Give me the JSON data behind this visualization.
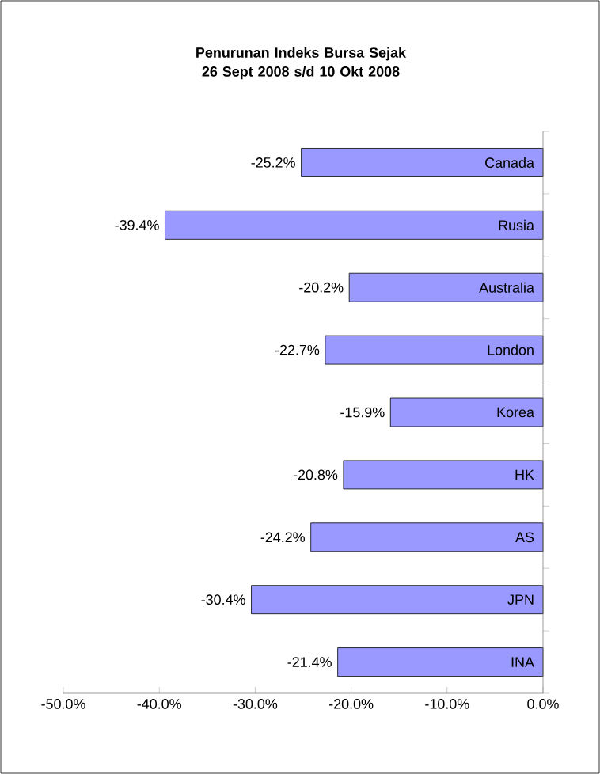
{
  "chart_data": {
    "type": "bar",
    "orientation": "horizontal",
    "title": "Penurunan Indeks Bursa Sejak 26 Sept 2008 s/d 10 Okt 2008",
    "categories": [
      "Canada",
      "Rusia",
      "Australia",
      "London",
      "Korea",
      "HK",
      "AS",
      "JPN",
      "INA"
    ],
    "values": [
      -25.2,
      -39.4,
      -20.2,
      -22.7,
      -15.9,
      -20.8,
      -24.2,
      -30.4,
      -21.4
    ],
    "value_labels": [
      "-25.2%",
      "-39.4%",
      "-20.2%",
      "-22.7%",
      "-15.9%",
      "-20.8%",
      "-24.2%",
      "-30.4%",
      "-21.4%"
    ],
    "color": "#9999ff",
    "xlim": [
      -50,
      0
    ],
    "xticks": [
      {
        "value": -50,
        "label": "-50.0%"
      },
      {
        "value": -40,
        "label": "-40.0%"
      },
      {
        "value": -30,
        "label": "-30.0%"
      },
      {
        "value": -20,
        "label": "-20.0%"
      },
      {
        "value": -10,
        "label": "-10.0%"
      },
      {
        "value": 0,
        "label": "0.0%"
      }
    ]
  }
}
